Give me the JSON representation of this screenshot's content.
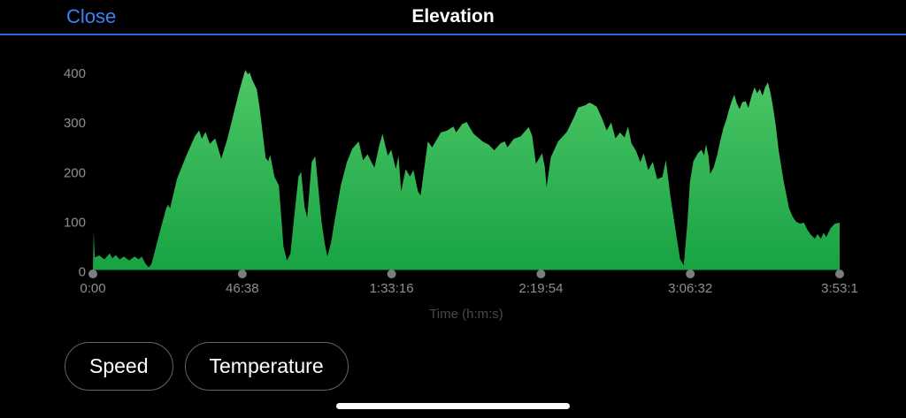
{
  "header": {
    "close_label": "Close",
    "title": "Elevation"
  },
  "chart_data": {
    "type": "area",
    "title": "Elevation",
    "xlabel": "Time (h:m:s)",
    "ylabel": "",
    "xlim": [
      0,
      13990
    ],
    "ylim": [
      0,
      400
    ],
    "grid": false,
    "legend": false,
    "y_ticks": [
      0,
      100,
      200,
      300,
      400
    ],
    "x_ticks": [
      {
        "t": 0,
        "label": "0:00"
      },
      {
        "t": 2798,
        "label": "46:38"
      },
      {
        "t": 5596,
        "label": "1:33:16"
      },
      {
        "t": 8394,
        "label": "2:19:54"
      },
      {
        "t": 11192,
        "label": "3:06:32"
      },
      {
        "t": 13990,
        "label": "3:53:1"
      }
    ],
    "area_gradient": {
      "top": "#52CA6A",
      "bottom": "#18A343"
    },
    "axis_label_color": "#8E8E93",
    "xlabel_color": "#48484A",
    "tick_dot_color": "#7C7C81",
    "series": [
      {
        "name": "Elevation",
        "points": [
          [
            0,
            3
          ],
          [
            15,
            80
          ],
          [
            35,
            28
          ],
          [
            120,
            32
          ],
          [
            215,
            24
          ],
          [
            315,
            36
          ],
          [
            365,
            26
          ],
          [
            430,
            33
          ],
          [
            500,
            24
          ],
          [
            580,
            30
          ],
          [
            680,
            22
          ],
          [
            780,
            30
          ],
          [
            860,
            24
          ],
          [
            915,
            30
          ],
          [
            980,
            16
          ],
          [
            1045,
            8
          ],
          [
            1095,
            14
          ],
          [
            1195,
            55
          ],
          [
            1295,
            96
          ],
          [
            1375,
            128
          ],
          [
            1410,
            134
          ],
          [
            1445,
            127
          ],
          [
            1575,
            186
          ],
          [
            1745,
            232
          ],
          [
            1910,
            272
          ],
          [
            1990,
            284
          ],
          [
            2040,
            267
          ],
          [
            2110,
            281
          ],
          [
            2190,
            257
          ],
          [
            2290,
            268
          ],
          [
            2405,
            227
          ],
          [
            2520,
            267
          ],
          [
            2620,
            311
          ],
          [
            2740,
            363
          ],
          [
            2855,
            406
          ],
          [
            2905,
            397
          ],
          [
            2935,
            401
          ],
          [
            2985,
            386
          ],
          [
            3070,
            367
          ],
          [
            3120,
            333
          ],
          [
            3235,
            229
          ],
          [
            3285,
            222
          ],
          [
            3320,
            235
          ],
          [
            3400,
            191
          ],
          [
            3485,
            173
          ],
          [
            3570,
            50
          ],
          [
            3635,
            22
          ],
          [
            3700,
            35
          ],
          [
            3765,
            103
          ],
          [
            3850,
            190
          ],
          [
            3900,
            201
          ],
          [
            3965,
            130
          ],
          [
            4015,
            108
          ],
          [
            4100,
            220
          ],
          [
            4165,
            232
          ],
          [
            4230,
            160
          ],
          [
            4280,
            103
          ],
          [
            4345,
            55
          ],
          [
            4395,
            30
          ],
          [
            4465,
            60
          ],
          [
            4530,
            103
          ],
          [
            4645,
            173
          ],
          [
            4760,
            221
          ],
          [
            4860,
            247
          ],
          [
            4980,
            262
          ],
          [
            5060,
            224
          ],
          [
            5145,
            236
          ],
          [
            5210,
            222
          ],
          [
            5275,
            209
          ],
          [
            5360,
            252
          ],
          [
            5425,
            277
          ],
          [
            5525,
            233
          ],
          [
            5590,
            245
          ],
          [
            5675,
            206
          ],
          [
            5725,
            233
          ],
          [
            5775,
            161
          ],
          [
            5860,
            206
          ],
          [
            5940,
            191
          ],
          [
            6005,
            204
          ],
          [
            6090,
            161
          ],
          [
            6140,
            153
          ],
          [
            6275,
            262
          ],
          [
            6355,
            250
          ],
          [
            6520,
            280
          ],
          [
            6640,
            284
          ],
          [
            6755,
            292
          ],
          [
            6805,
            280
          ],
          [
            6920,
            297
          ],
          [
            7005,
            301
          ],
          [
            7055,
            291
          ],
          [
            7135,
            277
          ],
          [
            7300,
            262
          ],
          [
            7420,
            255
          ],
          [
            7520,
            244
          ],
          [
            7635,
            258
          ],
          [
            7715,
            262
          ],
          [
            7765,
            250
          ],
          [
            7885,
            267
          ],
          [
            8015,
            272
          ],
          [
            8165,
            291
          ],
          [
            8230,
            273
          ],
          [
            8300,
            217
          ],
          [
            8350,
            226
          ],
          [
            8415,
            238
          ],
          [
            8465,
            211
          ],
          [
            8500,
            170
          ],
          [
            8580,
            230
          ],
          [
            8715,
            262
          ],
          [
            8880,
            281
          ],
          [
            9010,
            310
          ],
          [
            9090,
            330
          ],
          [
            9230,
            335
          ],
          [
            9295,
            340
          ],
          [
            9345,
            338
          ],
          [
            9440,
            332
          ],
          [
            9540,
            308
          ],
          [
            9625,
            284
          ],
          [
            9710,
            300
          ],
          [
            9790,
            268
          ],
          [
            9875,
            280
          ],
          [
            9960,
            270
          ],
          [
            10025,
            292
          ],
          [
            10090,
            258
          ],
          [
            10175,
            243
          ],
          [
            10255,
            220
          ],
          [
            10320,
            238
          ],
          [
            10405,
            204
          ],
          [
            10490,
            221
          ],
          [
            10570,
            186
          ],
          [
            10670,
            190
          ],
          [
            10735,
            224
          ],
          [
            10820,
            150
          ],
          [
            10920,
            80
          ],
          [
            11000,
            25
          ],
          [
            11070,
            12
          ],
          [
            11135,
            95
          ],
          [
            11185,
            180
          ],
          [
            11250,
            222
          ],
          [
            11335,
            238
          ],
          [
            11400,
            245
          ],
          [
            11450,
            234
          ],
          [
            11485,
            256
          ],
          [
            11535,
            231
          ],
          [
            11565,
            196
          ],
          [
            11635,
            211
          ],
          [
            11700,
            236
          ],
          [
            11750,
            262
          ],
          [
            11815,
            290
          ],
          [
            11865,
            305
          ],
          [
            11915,
            325
          ],
          [
            11965,
            342
          ],
          [
            12015,
            356
          ],
          [
            12065,
            338
          ],
          [
            12115,
            327
          ],
          [
            12165,
            341
          ],
          [
            12230,
            343
          ],
          [
            12280,
            329
          ],
          [
            12345,
            356
          ],
          [
            12395,
            371
          ],
          [
            12445,
            359
          ],
          [
            12495,
            368
          ],
          [
            12545,
            354
          ],
          [
            12595,
            371
          ],
          [
            12645,
            381
          ],
          [
            12695,
            359
          ],
          [
            12745,
            329
          ],
          [
            12795,
            293
          ],
          [
            12845,
            246
          ],
          [
            12895,
            212
          ],
          [
            12945,
            179
          ],
          [
            12990,
            155
          ],
          [
            13040,
            128
          ],
          [
            13110,
            110
          ],
          [
            13175,
            100
          ],
          [
            13245,
            96
          ],
          [
            13320,
            98
          ],
          [
            13385,
            84
          ],
          [
            13440,
            75
          ],
          [
            13525,
            66
          ],
          [
            13575,
            75
          ],
          [
            13640,
            66
          ],
          [
            13690,
            78
          ],
          [
            13740,
            69
          ],
          [
            13820,
            87
          ],
          [
            13900,
            96
          ],
          [
            13990,
            98
          ]
        ]
      }
    ]
  },
  "buttons": [
    {
      "label": "Speed"
    },
    {
      "label": "Temperature"
    }
  ],
  "colors": {
    "background": "#000000",
    "accent_blue": "#3C82F7",
    "header_separator_blue": "#2D68D9",
    "pill_border": "#646468",
    "home_indicator": "#FCFCFC"
  }
}
